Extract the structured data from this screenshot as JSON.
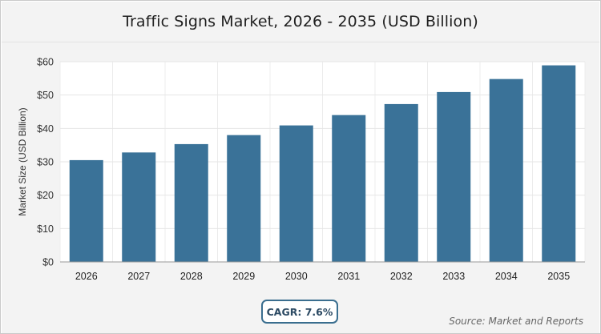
{
  "chart_data": {
    "type": "bar",
    "title": "Traffic Signs Market, 2026 - 2035 (USD Billion)",
    "ylabel": "Market Size (USD Billion)",
    "xlabel": "",
    "categories": [
      "2026",
      "2027",
      "2028",
      "2029",
      "2030",
      "2031",
      "2032",
      "2033",
      "2034",
      "2035"
    ],
    "values": [
      30.5,
      32.8,
      35.3,
      38.0,
      40.9,
      44.0,
      47.3,
      50.9,
      54.8,
      58.9
    ],
    "ylim": [
      0,
      60
    ],
    "yticks": [
      "$0",
      "$10",
      "$20",
      "$30",
      "$40",
      "$50",
      "$60"
    ],
    "grid": true,
    "bar_color": "#3a7298"
  },
  "cagr_label": "CAGR: 7.6%",
  "source_text": "Source: Market and Reports"
}
